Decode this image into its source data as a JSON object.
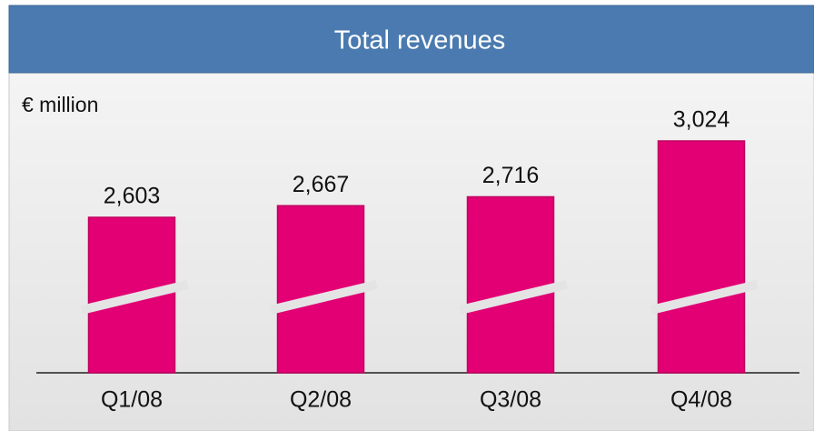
{
  "chart_data": {
    "type": "bar",
    "title": "Total revenues",
    "unit_label": "€ million",
    "categories": [
      "Q1/08",
      "Q2/08",
      "Q3/08",
      "Q4/08"
    ],
    "values": [
      2603,
      2667,
      2716,
      3024
    ],
    "value_labels": [
      "2,603",
      "2,667",
      "2,716",
      "3,024"
    ],
    "color": "#e20074"
  }
}
